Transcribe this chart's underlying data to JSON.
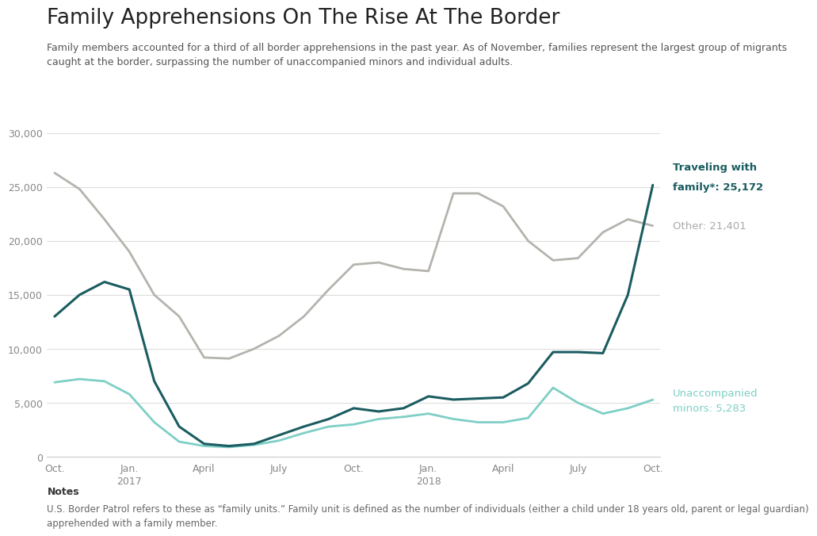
{
  "title": "Family Apprehensions On The Rise At The Border",
  "subtitle": "Family members accounted for a third of all border apprehensions in the past year. As of November, families represent the largest group of migrants\ncaught at the border, surpassing the number of unaccompanied minors and individual adults.",
  "notes_header": "Notes",
  "notes_text": "U.S. Border Patrol refers to these as “family units.” Family unit is defined as the number of individuals (either a child under 18 years old, parent or legal guardian)\napprehended with a family member.",
  "background_color": "#ffffff",
  "plot_background": "#ffffff",
  "x_labels": [
    "Oct.",
    "Jan.\n2017",
    "April",
    "July",
    "Oct.",
    "Jan.\n2018",
    "April",
    "July",
    "Oct."
  ],
  "x_positions": [
    0,
    3,
    6,
    9,
    12,
    15,
    18,
    21,
    24
  ],
  "ylim": [
    0,
    30000
  ],
  "yticks": [
    0,
    5000,
    10000,
    15000,
    20000,
    25000,
    30000
  ],
  "family_color": "#1a5c60",
  "other_color": "#b5b3ad",
  "minors_color": "#7ecfc5",
  "family_label_line1": "Traveling with",
  "family_label_line2": "family*: 25,172",
  "other_label": "Other: 21,401",
  "minors_label_line1": "Unaccompanied",
  "minors_label_line2": "minors: 5,283",
  "family_data_x": [
    0,
    1,
    2,
    3,
    4,
    5,
    6,
    7,
    8,
    9,
    10,
    11,
    12,
    13,
    14,
    15,
    16,
    17,
    18,
    19,
    20,
    21,
    22,
    23,
    24
  ],
  "family_data_y": [
    13000,
    15000,
    16200,
    15500,
    7000,
    2800,
    1200,
    1000,
    1200,
    2000,
    2800,
    3500,
    4500,
    4200,
    4500,
    5600,
    5300,
    5400,
    5500,
    6800,
    9700,
    9700,
    9600,
    15000,
    25172
  ],
  "other_data_x": [
    0,
    1,
    2,
    3,
    4,
    5,
    6,
    7,
    8,
    9,
    10,
    11,
    12,
    13,
    14,
    15,
    16,
    17,
    18,
    19,
    20,
    21,
    22,
    23,
    24
  ],
  "other_data_y": [
    26300,
    24800,
    22000,
    19000,
    15000,
    13000,
    9200,
    9100,
    10000,
    11200,
    13000,
    15500,
    17800,
    18000,
    17400,
    17200,
    24400,
    24400,
    23200,
    20000,
    18200,
    18400,
    20800,
    22000,
    21401
  ],
  "minors_data_x": [
    0,
    1,
    2,
    3,
    4,
    5,
    6,
    7,
    8,
    9,
    10,
    11,
    12,
    13,
    14,
    15,
    16,
    17,
    18,
    19,
    20,
    21,
    22,
    23,
    24
  ],
  "minors_data_y": [
    6900,
    7200,
    7000,
    5800,
    3200,
    1400,
    1000,
    900,
    1100,
    1500,
    2200,
    2800,
    3000,
    3500,
    3700,
    4000,
    3500,
    3200,
    3200,
    3600,
    6400,
    5000,
    4000,
    4500,
    5283
  ]
}
